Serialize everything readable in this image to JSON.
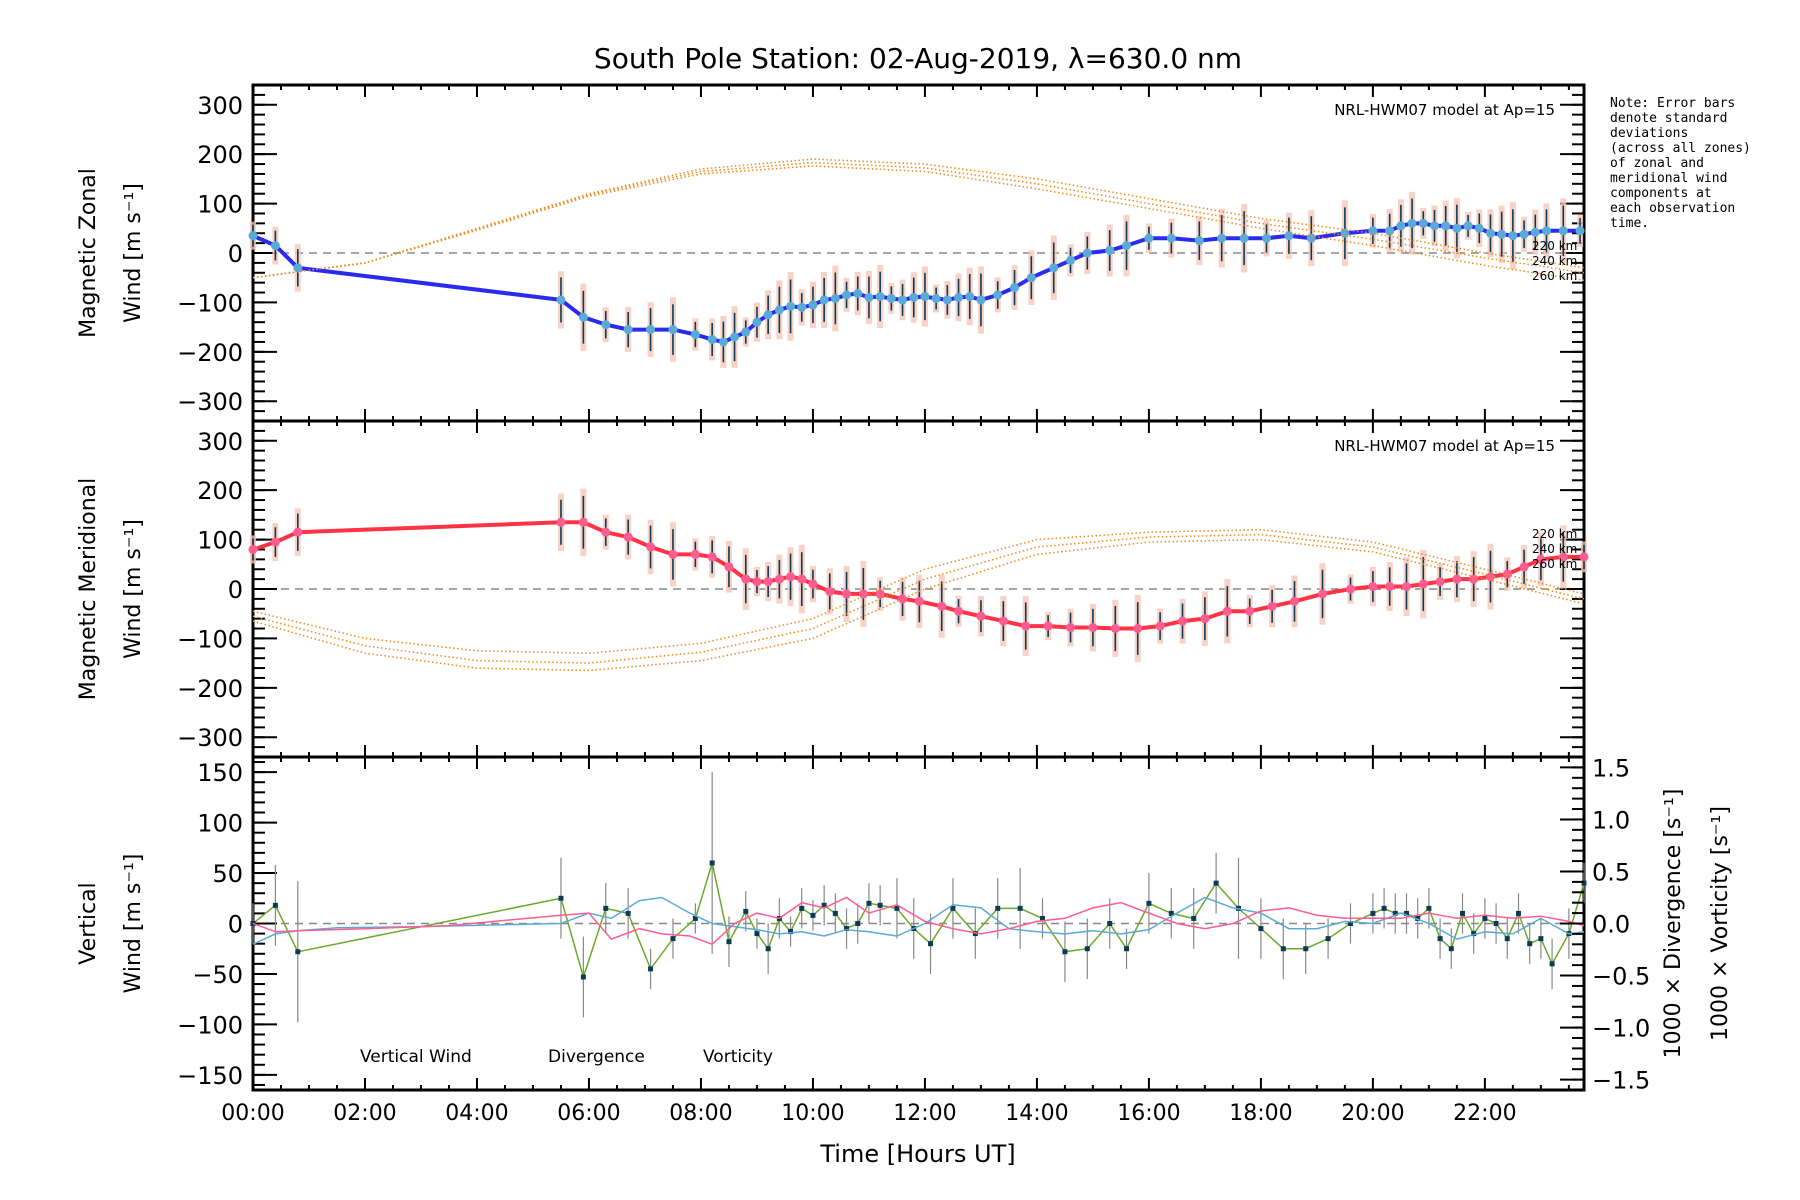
{
  "chart_data": {
    "type": "line",
    "title": "South Pole Station: 02-Aug-2019, λ=630.0 nm",
    "xlabel": "Time [Hours UT]",
    "xlim": [
      0,
      23.77
    ],
    "xticks": [
      0,
      2,
      4,
      6,
      8,
      10,
      12,
      14,
      16,
      18,
      20,
      22
    ],
    "xtick_labels": [
      "00:00",
      "02:00",
      "04:00",
      "06:00",
      "08:00",
      "10:00",
      "12:00",
      "14:00",
      "16:00",
      "18:00",
      "20:00",
      "22:00"
    ],
    "note": "Note: Error bars\ndenote standard\ndeviations\n(across all zones)\nof zonal and\nmeridional wind\ncomponents at\neach observation\ntime.",
    "panels": [
      {
        "id": "zonal",
        "ylabel_line1": "Magnetic Zonal",
        "ylabel_line2": "Wind [m s⁻¹]",
        "ylim": [
          -340,
          340
        ],
        "yticks": [
          -300,
          -200,
          -100,
          0,
          100,
          200,
          300
        ],
        "model_label": "NRL-HWM07 model at Ap=15",
        "altitude_labels": [
          "220 km",
          "240 km",
          "260 km"
        ],
        "series": [
          {
            "name": "Magnetic Zonal Wind",
            "color": "#2b2bf0",
            "x": [
              0.0,
              0.4,
              0.8,
              5.5,
              5.9,
              6.3,
              6.7,
              7.1,
              7.5,
              7.9,
              8.2,
              8.4,
              8.6,
              8.8,
              9.0,
              9.2,
              9.4,
              9.6,
              9.8,
              10.0,
              10.2,
              10.4,
              10.6,
              10.8,
              11.0,
              11.2,
              11.4,
              11.6,
              11.8,
              12.0,
              12.2,
              12.4,
              12.6,
              12.8,
              13.0,
              13.3,
              13.6,
              13.9,
              14.3,
              14.6,
              14.9,
              15.3,
              15.6,
              16.0,
              16.4,
              16.9,
              17.3,
              17.7,
              18.1,
              18.5,
              18.9,
              19.5,
              20.0,
              20.3,
              20.5,
              20.7,
              20.9,
              21.1,
              21.3,
              21.5,
              21.7,
              21.9,
              22.1,
              22.3,
              22.5,
              22.7,
              22.9,
              23.1,
              23.4,
              23.7
            ],
            "y": [
              35,
              15,
              -30,
              -95,
              -130,
              -145,
              -155,
              -155,
              -155,
              -165,
              -175,
              -180,
              -170,
              -160,
              -140,
              -125,
              -115,
              -108,
              -110,
              -105,
              -95,
              -92,
              -85,
              -82,
              -90,
              -88,
              -92,
              -95,
              -90,
              -88,
              -92,
              -95,
              -90,
              -88,
              -95,
              -85,
              -70,
              -50,
              -30,
              -15,
              0,
              5,
              15,
              30,
              30,
              25,
              30,
              30,
              30,
              35,
              30,
              40,
              45,
              45,
              55,
              60,
              60,
              55,
              55,
              50,
              55,
              50,
              40,
              38,
              35,
              38,
              42,
              45,
              45,
              45
            ]
          },
          {
            "name": "HWM07 220 km",
            "color": "#f08a1a",
            "style": "dotted",
            "x": [
              0,
              2,
              4,
              6,
              8,
              10,
              12,
              14,
              16,
              18,
              20,
              22,
              23.77
            ],
            "y": [
              -50,
              -20,
              50,
              120,
              170,
              190,
              180,
              150,
              110,
              70,
              40,
              0,
              -30
            ]
          },
          {
            "name": "HWM07 240 km",
            "color": "#f08a1a",
            "style": "dotted",
            "x": [
              0,
              2,
              4,
              6,
              8,
              10,
              12,
              14,
              16,
              18,
              20,
              22,
              23.77
            ],
            "y": [
              -50,
              -20,
              48,
              118,
              165,
              183,
              172,
              140,
              100,
              60,
              28,
              -10,
              -40
            ]
          },
          {
            "name": "HWM07 260 km",
            "color": "#f08a1a",
            "style": "dotted",
            "x": [
              0,
              2,
              4,
              6,
              8,
              10,
              12,
              14,
              16,
              18,
              20,
              22,
              23.77
            ],
            "y": [
              -50,
              -20,
              46,
              115,
              160,
              176,
              165,
              130,
              90,
              50,
              15,
              -25,
              -55
            ]
          }
        ]
      },
      {
        "id": "meridional",
        "ylabel_line1": "Magnetic Meridional",
        "ylabel_line2": "Wind [m s⁻¹]",
        "ylim": [
          -340,
          340
        ],
        "yticks": [
          -300,
          -200,
          -100,
          0,
          100,
          200,
          300
        ],
        "model_label": "NRL-HWM07 model at Ap=15",
        "altitude_labels": [
          "220 km",
          "240 km",
          "260 km"
        ],
        "series": [
          {
            "name": "Magnetic Meridional Wind",
            "color": "#ff3344",
            "x": [
              0.0,
              0.4,
              0.8,
              5.5,
              5.9,
              6.3,
              6.7,
              7.1,
              7.5,
              7.9,
              8.2,
              8.5,
              8.8,
              9.0,
              9.2,
              9.4,
              9.6,
              9.8,
              10.0,
              10.3,
              10.6,
              10.9,
              11.2,
              11.6,
              11.9,
              12.3,
              12.6,
              13.0,
              13.4,
              13.8,
              14.2,
              14.6,
              15.0,
              15.4,
              15.8,
              16.2,
              16.6,
              17.0,
              17.4,
              17.8,
              18.2,
              18.6,
              19.1,
              19.6,
              20.0,
              20.3,
              20.6,
              20.9,
              21.2,
              21.5,
              21.8,
              22.1,
              22.4,
              22.7,
              23.0,
              23.4,
              23.77
            ],
            "y": [
              80,
              95,
              115,
              135,
              135,
              115,
              105,
              85,
              70,
              70,
              65,
              45,
              20,
              15,
              15,
              20,
              25,
              20,
              10,
              -5,
              -10,
              -10,
              -10,
              -20,
              -25,
              -35,
              -45,
              -55,
              -65,
              -75,
              -75,
              -78,
              -78,
              -80,
              -80,
              -75,
              -65,
              -60,
              -45,
              -45,
              -35,
              -25,
              -10,
              0,
              5,
              5,
              5,
              10,
              15,
              20,
              20,
              25,
              30,
              45,
              60,
              65,
              65
            ]
          },
          {
            "name": "HWM07 220 km",
            "color": "#f08a1a",
            "style": "dotted",
            "x": [
              0,
              2,
              4,
              6,
              8,
              10,
              12,
              14,
              16,
              18,
              20,
              22,
              23.77
            ],
            "y": [
              -45,
              -100,
              -125,
              -130,
              -110,
              -60,
              40,
              100,
              115,
              120,
              95,
              40,
              -10
            ]
          },
          {
            "name": "HWM07 240 km",
            "color": "#f08a1a",
            "style": "dotted",
            "x": [
              0,
              2,
              4,
              6,
              8,
              10,
              12,
              14,
              16,
              18,
              20,
              22,
              23.77
            ],
            "y": [
              -55,
              -115,
              -145,
              -150,
              -128,
              -80,
              20,
              85,
              105,
              110,
              85,
              30,
              -20
            ]
          },
          {
            "name": "HWM07 260 km",
            "color": "#f08a1a",
            "style": "dotted",
            "x": [
              0,
              2,
              4,
              6,
              8,
              10,
              12,
              14,
              16,
              18,
              20,
              22,
              23.77
            ],
            "y": [
              -65,
              -130,
              -160,
              -165,
              -145,
              -100,
              0,
              70,
              95,
              100,
              75,
              20,
              -30
            ]
          }
        ]
      },
      {
        "id": "vertical",
        "ylabel_line1": "Vertical",
        "ylabel_line2": "Wind [m s⁻¹]",
        "ylim": [
          -165,
          165
        ],
        "yticks": [
          -150,
          -100,
          -50,
          0,
          50,
          100,
          150
        ],
        "right_ylim": [
          -1.6,
          1.6
        ],
        "right_yticks": [
          -1.5,
          -1.0,
          -0.5,
          0.0,
          0.5,
          1.0,
          1.5
        ],
        "right_ytick_labels": [
          "−1.5",
          "−1.0",
          "−0.5",
          "0.0",
          "0.5",
          "1.0",
          "1.5"
        ],
        "right_ylabel_divergence": "1000 × Divergence [s⁻¹]",
        "right_ylabel_vorticity": "1000 × Vorticity [s⁻¹]",
        "legend": [
          {
            "label": "Vertical Wind",
            "color": "#6aaa2a"
          },
          {
            "label": "Divergence",
            "color": "#5aaad8"
          },
          {
            "label": "Vorticity",
            "color": "#ff5c90"
          }
        ],
        "legend_position": "bottom-left",
        "series": [
          {
            "name": "Vertical Wind",
            "color": "#6aaa2a",
            "axis": "left",
            "x": [
              0.0,
              0.4,
              0.8,
              5.5,
              5.9,
              6.3,
              6.7,
              7.1,
              7.5,
              7.9,
              8.2,
              8.5,
              8.8,
              9.0,
              9.2,
              9.4,
              9.6,
              9.8,
              10.0,
              10.2,
              10.4,
              10.6,
              10.8,
              11.0,
              11.2,
              11.5,
              11.8,
              12.1,
              12.5,
              12.9,
              13.3,
              13.7,
              14.1,
              14.5,
              14.9,
              15.3,
              15.6,
              16.0,
              16.4,
              16.8,
              17.2,
              17.6,
              18.0,
              18.4,
              18.8,
              19.2,
              19.6,
              20.0,
              20.2,
              20.4,
              20.6,
              20.8,
              21.0,
              21.2,
              21.4,
              21.6,
              21.8,
              22.0,
              22.2,
              22.4,
              22.6,
              22.8,
              23.0,
              23.2,
              23.5,
              23.77
            ],
            "y": [
              0,
              18,
              -28,
              25,
              -53,
              15,
              10,
              -45,
              -15,
              5,
              60,
              -18,
              12,
              -10,
              -25,
              5,
              -8,
              15,
              8,
              18,
              10,
              -5,
              0,
              20,
              18,
              15,
              -5,
              -20,
              15,
              -10,
              15,
              15,
              5,
              -28,
              -25,
              0,
              -25,
              20,
              10,
              5,
              40,
              15,
              -5,
              -25,
              -25,
              -15,
              0,
              10,
              15,
              10,
              10,
              5,
              15,
              -15,
              -25,
              10,
              -10,
              5,
              0,
              -15,
              10,
              -20,
              -15,
              -40,
              -10,
              40
            ],
            "err": [
              20,
              40,
              70,
              40,
              40,
              25,
              25,
              20,
              20,
              15,
              90,
              25,
              20,
              15,
              25,
              20,
              15,
              20,
              15,
              20,
              20,
              20,
              20,
              20,
              20,
              30,
              30,
              30,
              30,
              25,
              30,
              40,
              20,
              30,
              30,
              25,
              20,
              30,
              25,
              30,
              30,
              50,
              30,
              30,
              25,
              20,
              20,
              20,
              20,
              20,
              20,
              20,
              20,
              20,
              20,
              20,
              20,
              20,
              20,
              20,
              20,
              20,
              20,
              25,
              25,
              20
            ]
          },
          {
            "name": "Divergence",
            "color": "#5aaad8",
            "axis": "right",
            "x": [
              0.0,
              0.4,
              0.8,
              1.5,
              3.0,
              5.5,
              6.0,
              6.4,
              6.9,
              7.3,
              7.8,
              8.2,
              8.6,
              9.0,
              9.4,
              9.8,
              10.2,
              10.6,
              11.0,
              11.5,
              12.0,
              12.5,
              13.0,
              13.5,
              14.0,
              14.5,
              15.0,
              15.5,
              16.0,
              16.5,
              17.0,
              17.5,
              18.0,
              18.5,
              19.0,
              19.5,
              20.0,
              20.5,
              21.0,
              21.5,
              22.0,
              22.5,
              23.0,
              23.5,
              23.77
            ],
            "y": [
              -0.2,
              -0.1,
              -0.07,
              -0.04,
              -0.03,
              0.0,
              0.1,
              0.05,
              0.22,
              0.25,
              0.1,
              0.0,
              -0.03,
              -0.06,
              -0.1,
              -0.08,
              -0.12,
              -0.06,
              -0.08,
              -0.12,
              0.0,
              0.18,
              0.15,
              -0.05,
              -0.08,
              -0.1,
              -0.07,
              -0.1,
              -0.06,
              0.1,
              0.25,
              0.15,
              0.1,
              -0.05,
              -0.05,
              0.02,
              0.0,
              0.1,
              0.0,
              -0.15,
              -0.08,
              -0.1,
              0.05,
              -0.1,
              -0.08
            ]
          },
          {
            "name": "Vorticity",
            "color": "#ff5c90",
            "axis": "right",
            "x": [
              0.0,
              0.4,
              0.8,
              2.0,
              3.5,
              5.5,
              6.0,
              6.4,
              6.9,
              7.3,
              7.8,
              8.2,
              8.6,
              9.0,
              9.4,
              9.8,
              10.2,
              10.6,
              11.0,
              11.5,
              12.0,
              12.5,
              13.0,
              13.5,
              14.0,
              14.5,
              15.0,
              15.5,
              16.0,
              16.5,
              17.0,
              17.5,
              18.0,
              18.5,
              19.0,
              19.5,
              20.0,
              20.5,
              21.0,
              21.5,
              22.0,
              22.5,
              23.0,
              23.5,
              23.77
            ],
            "y": [
              0.0,
              -0.08,
              -0.07,
              -0.05,
              -0.02,
              0.08,
              0.1,
              -0.15,
              -0.05,
              -0.1,
              -0.12,
              -0.2,
              0.0,
              0.1,
              0.05,
              0.2,
              0.15,
              0.25,
              0.1,
              0.18,
              0.02,
              -0.05,
              -0.1,
              -0.05,
              0.02,
              0.05,
              0.15,
              0.2,
              0.1,
              0.0,
              -0.05,
              0.0,
              0.12,
              0.15,
              0.08,
              0.05,
              0.05,
              0.05,
              0.1,
              0.05,
              0.08,
              0.05,
              0.07,
              0.02,
              -0.02
            ]
          }
        ]
      }
    ]
  }
}
